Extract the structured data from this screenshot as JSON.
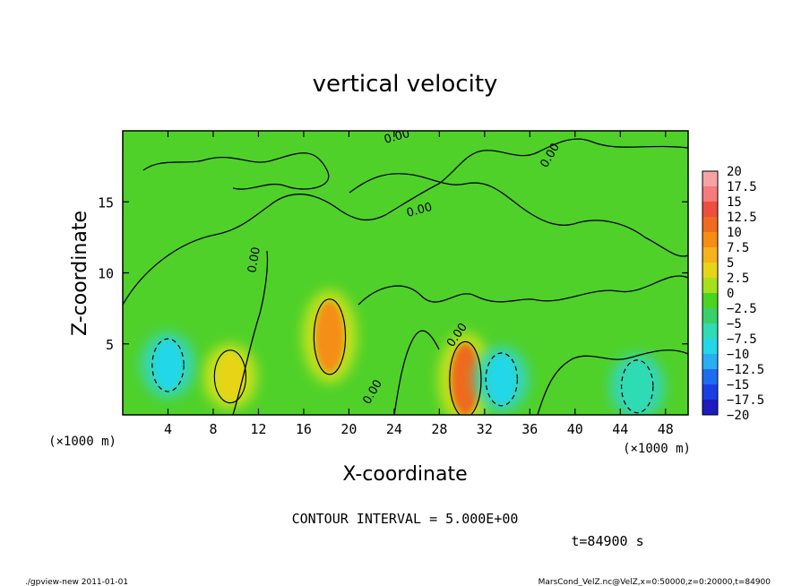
{
  "chart_data": {
    "type": "heatmap",
    "title": "vertical velocity",
    "xlabel": "X-coordinate",
    "ylabel": "Z-coordinate",
    "x_unit": "(×1000 m)",
    "y_unit": "(×1000 m)",
    "xlim": [
      0,
      50
    ],
    "ylim": [
      0,
      20
    ],
    "x_ticks": [
      "4",
      "8",
      "12",
      "16",
      "20",
      "24",
      "28",
      "32",
      "36",
      "40",
      "44",
      "48"
    ],
    "y_ticks": [
      "5",
      "10",
      "15"
    ],
    "contour_label": "0.00",
    "contour_interval_text": "CONTOUR INTERVAL = 5.000E+00",
    "time_text": "t=84900 s",
    "colorbar": {
      "levels": [
        "20",
        "17.5",
        "15",
        "12.5",
        "10",
        "7.5",
        "5",
        "2.5",
        "0",
        "−2.5",
        "−5",
        "−7.5",
        "−10",
        "−12.5",
        "−15",
        "−17.5",
        "−20"
      ],
      "colors": [
        "#f7a3a3",
        "#f67b7b",
        "#ef4e3e",
        "#f06a1f",
        "#f58e13",
        "#f5b21a",
        "#e6d419",
        "#a6e01c",
        "#4ad321",
        "#39d06a",
        "#2fdcb4",
        "#23d7e8",
        "#28aef3",
        "#1c6df0",
        "#1a3ee6",
        "#1c1cbf",
        "#6a1aa8"
      ]
    },
    "features": [
      {
        "kind": "updraft",
        "x": 9.5,
        "z": 2.7,
        "peak": 5
      },
      {
        "kind": "updraft",
        "x": 18.3,
        "z": 5.5,
        "peak": 10
      },
      {
        "kind": "updraft",
        "x": 30.3,
        "z": 2.5,
        "peak": 12.5
      },
      {
        "kind": "downdraft",
        "x": 4.0,
        "z": 3.5,
        "peak": -7.5
      },
      {
        "kind": "downdraft",
        "x": 33.5,
        "z": 2.5,
        "peak": -7.5
      },
      {
        "kind": "downdraft",
        "x": 45.5,
        "z": 2.0,
        "peak": -5
      }
    ]
  },
  "footer": {
    "left": "./gpview-new   2011-01-01",
    "right": "MarsCond_VelZ.nc@VelZ,x=0:50000,z=0:20000,t=84900"
  }
}
